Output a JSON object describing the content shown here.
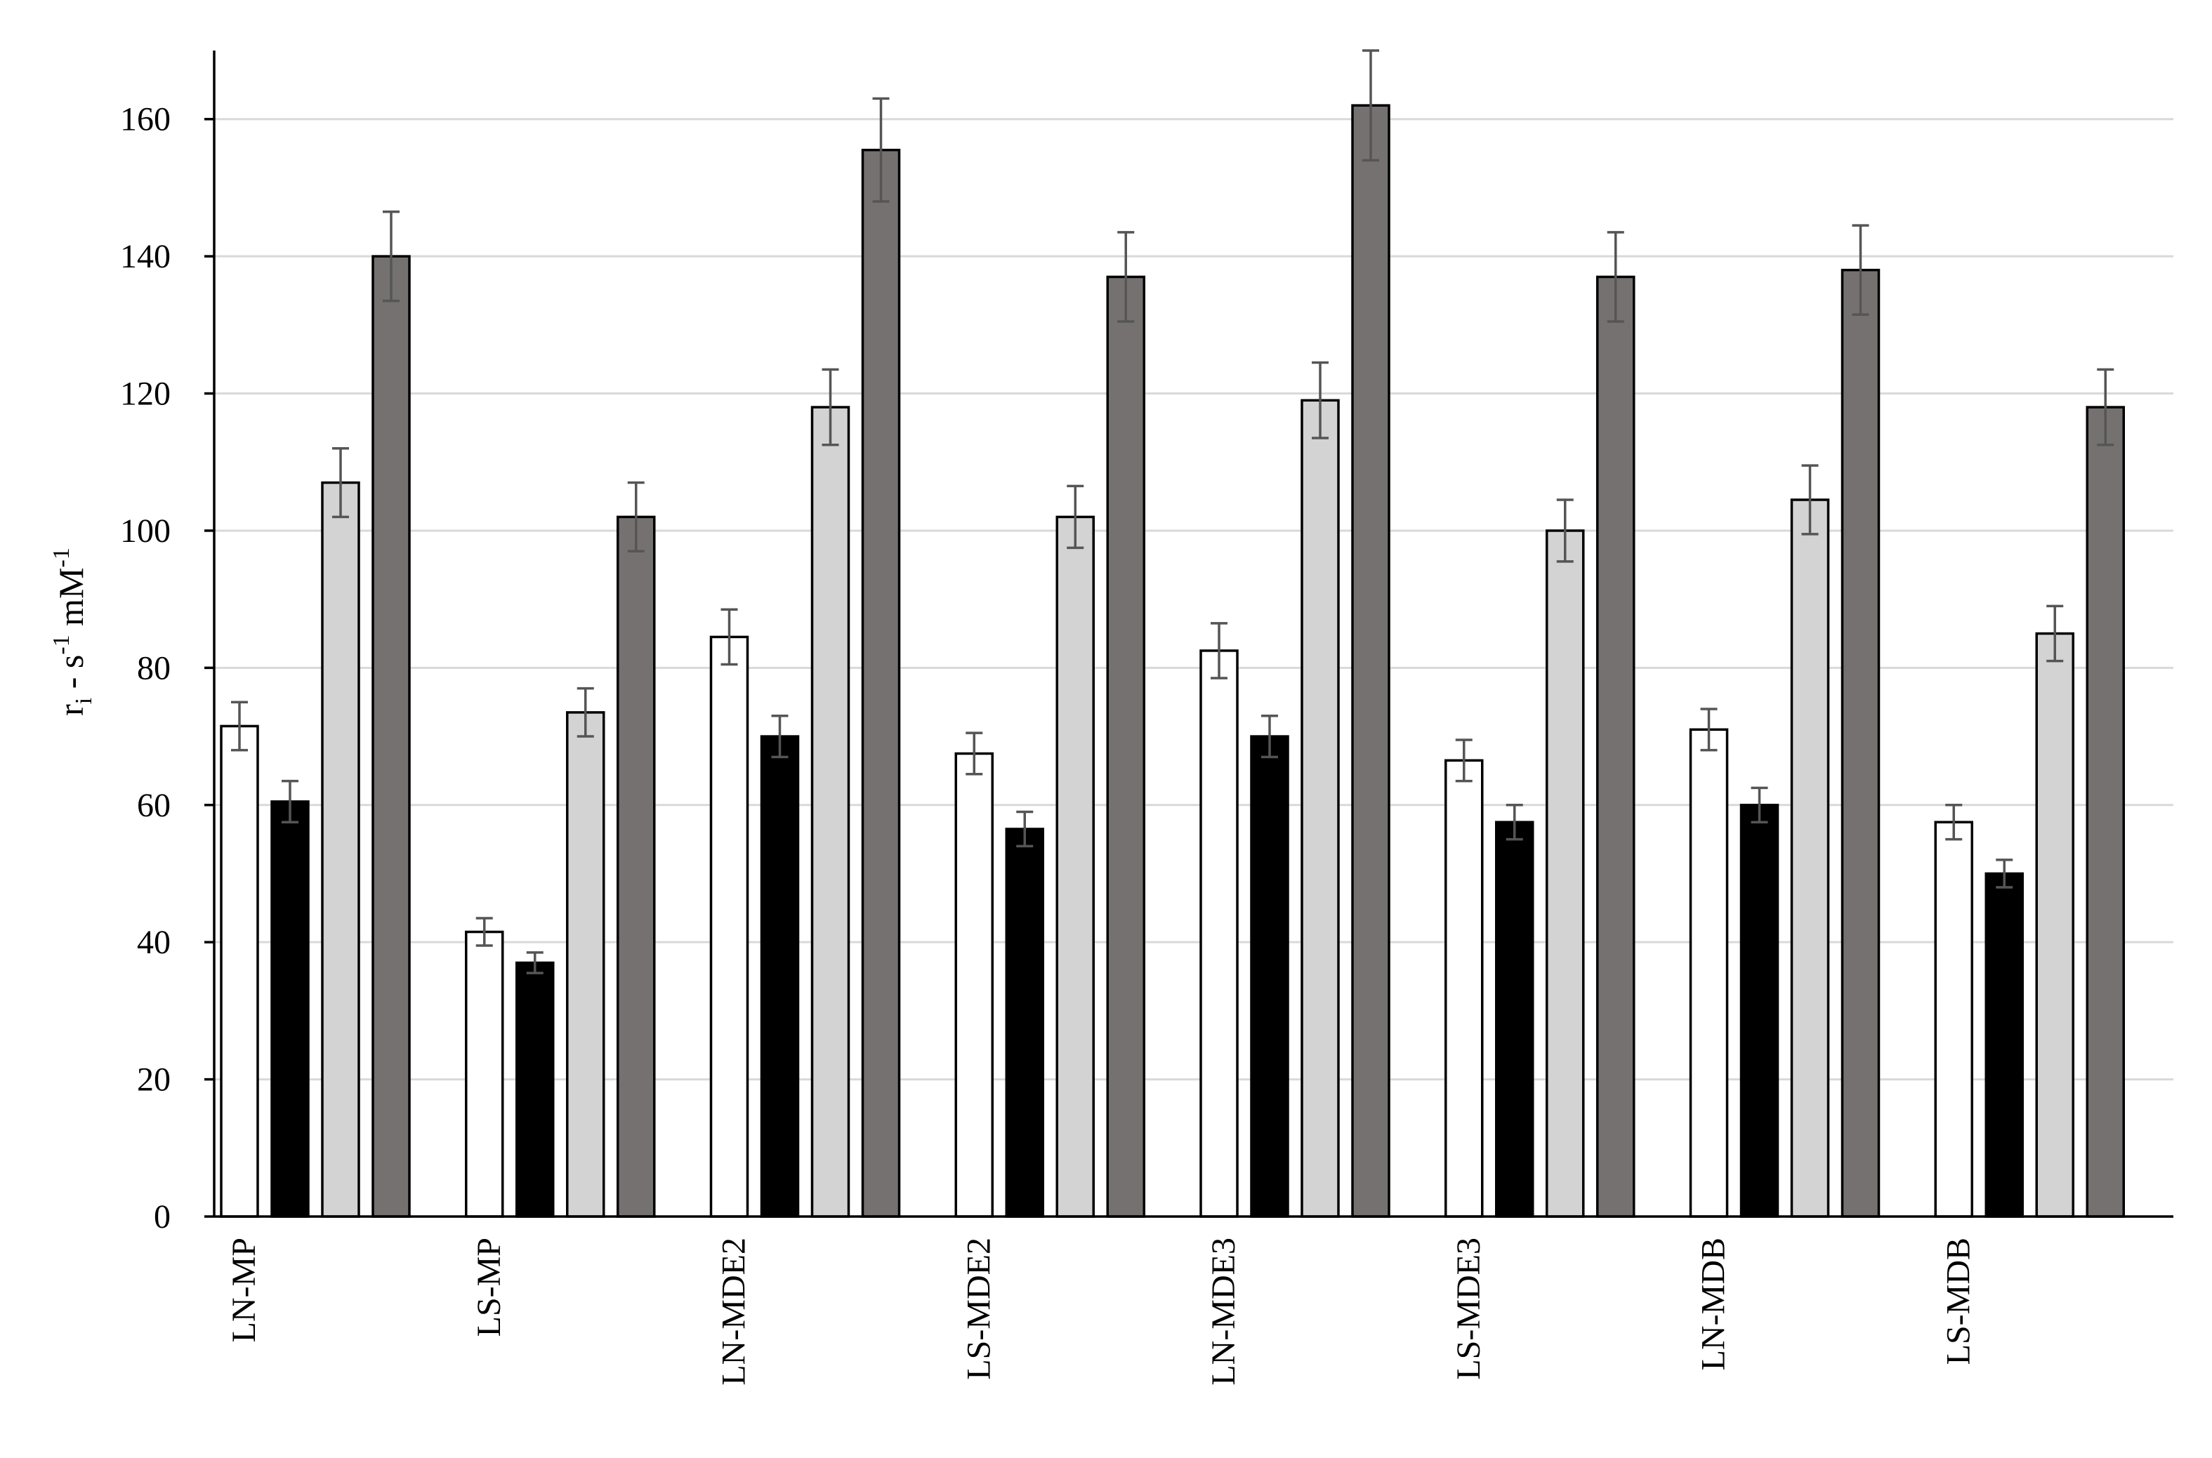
{
  "chart_data": {
    "type": "bar",
    "ylabel": {
      "main": "r",
      "sub": "i",
      "mid": " - s",
      "sup1": "-1",
      "unit": " mM",
      "sup2": "-1"
    },
    "ylim": [
      0,
      170
    ],
    "yticks": [
      0,
      20,
      40,
      60,
      80,
      100,
      120,
      140,
      160
    ],
    "grid": true,
    "categories": [
      "LN-MP",
      "LS-MP",
      "LN-MDE2",
      "LS-MDE2",
      "LN-MDE3",
      "LS-MDE3",
      "LN-MDB",
      "LS-MDB"
    ],
    "series": [
      {
        "color": "#ffffff",
        "values": [
          71.5,
          41.5,
          84.5,
          67.5,
          82.5,
          66.5,
          71,
          57.5
        ],
        "errors": [
          3.5,
          2,
          4,
          3,
          4,
          3,
          3,
          2.5
        ]
      },
      {
        "color": "#000000",
        "values": [
          60.5,
          37,
          70,
          56.5,
          70,
          57.5,
          60,
          50
        ],
        "errors": [
          3,
          1.5,
          3,
          2.5,
          3,
          2.5,
          2.5,
          2
        ]
      },
      {
        "color": "#d3d3d3",
        "values": [
          107,
          73.5,
          118,
          102,
          119,
          100,
          104.5,
          85
        ],
        "errors": [
          5,
          3.5,
          5.5,
          4.5,
          5.5,
          4.5,
          5,
          4
        ]
      },
      {
        "color": "#767171",
        "values": [
          140,
          102,
          155.5,
          137,
          162,
          137,
          138,
          118
        ],
        "errors": [
          6.5,
          5,
          7.5,
          6.5,
          8,
          6.5,
          6.5,
          5.5
        ]
      }
    ]
  }
}
